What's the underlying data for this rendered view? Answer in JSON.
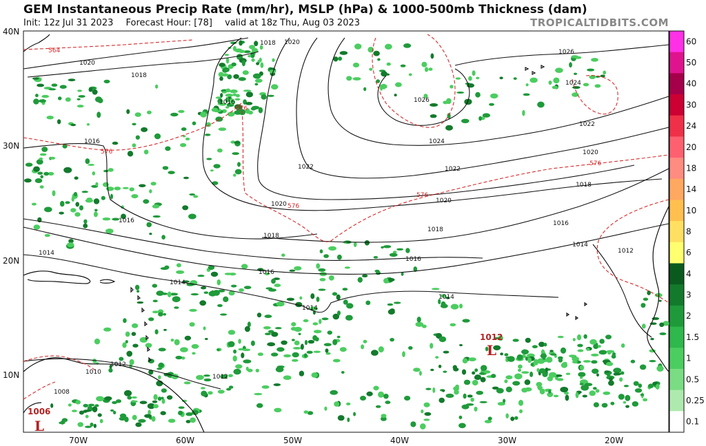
{
  "header": {
    "title": "GEM Instantaneous Precip Rate (mm/hr), MSLP (hPa) & 1000-500mb Thickness (dam)",
    "init": "Init: 12z Jul 31 2023",
    "forecast_hour": "Forecast Hour: [78]",
    "valid": "valid at 18z Thu, Aug 03 2023",
    "brand": "TROPICALTIDBITS.COM"
  },
  "axes": {
    "lat_labels": [
      "40N",
      "30N",
      "20N",
      "10N"
    ],
    "lon_labels": [
      "70W",
      "60W",
      "50W",
      "40W",
      "30W",
      "20W"
    ]
  },
  "colorbar": {
    "labels": [
      "60",
      "50",
      "40",
      "30",
      "24",
      "20",
      "18",
      "14",
      "10",
      "8",
      "6",
      "4",
      "3",
      "2",
      "1.5",
      "1",
      "0.5",
      "0.25",
      "0.1"
    ],
    "colors": [
      "#ff30e6",
      "#e0138e",
      "#a5004a",
      "#cc0033",
      "#f03048",
      "#ff6070",
      "#ff8c80",
      "#ffa860",
      "#ffc050",
      "#ffe060",
      "#ffff70",
      "#0a5a1e",
      "#137a2c",
      "#1f9a3a",
      "#2fb84c",
      "#4ccd60",
      "#7adc83",
      "#aeeaae",
      "#ffffff"
    ]
  },
  "isobar_labels": [
    "1020",
    "1018",
    "1016",
    "1014",
    "1012",
    "1026",
    "1024",
    "1022",
    "1010",
    "1008"
  ],
  "thickness_labels": [
    "564",
    "576"
  ],
  "lows": [
    {
      "value": "1012",
      "letter": "L"
    },
    {
      "value": "1006",
      "letter": "L"
    }
  ],
  "colors": {
    "isobar": "#111111",
    "thickness": "#d42a2a",
    "precip_light": "#4ccd60",
    "precip_mid": "#1f9a3a",
    "precip_dark": "#137a2c",
    "land_outline": "#111111"
  }
}
